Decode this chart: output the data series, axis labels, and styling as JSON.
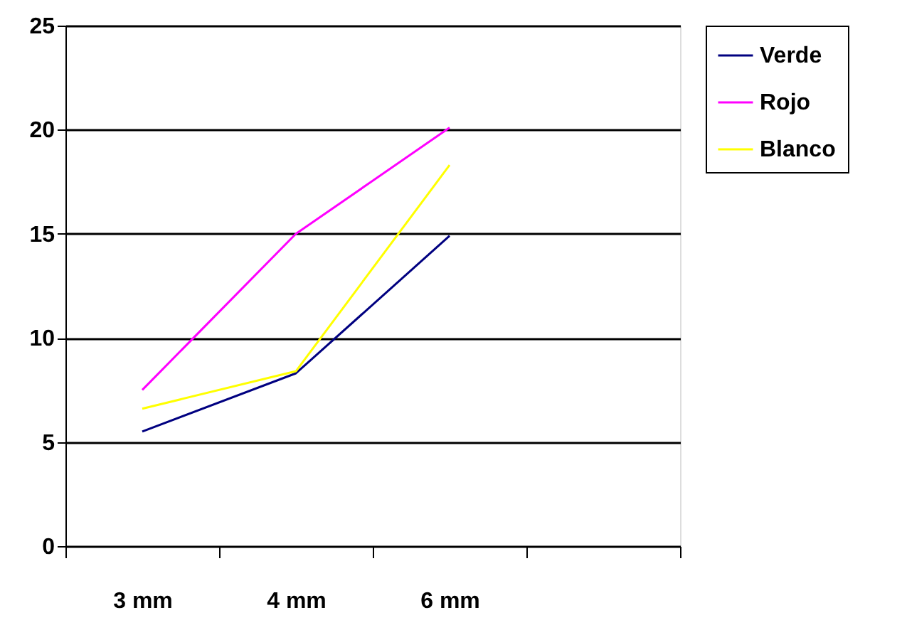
{
  "chart_data": {
    "type": "line",
    "categories": [
      "3 mm",
      "4 mm",
      "6 mm",
      null
    ],
    "series": [
      {
        "name": "Verde",
        "color": "#000080",
        "values": [
          5.5,
          8.3,
          14.9,
          null
        ]
      },
      {
        "name": "Rojo",
        "color": "#ff00ff",
        "values": [
          7.5,
          15.0,
          20.1,
          null
        ]
      },
      {
        "name": "Blanco",
        "color": "#ffff00",
        "values": [
          6.6,
          8.4,
          18.3,
          null
        ]
      }
    ],
    "ylim": [
      0,
      25
    ],
    "yticks": [
      0,
      5,
      10,
      15,
      20,
      25
    ],
    "grid": "y",
    "legend": "right",
    "marker": "none",
    "line_style": "solid"
  }
}
